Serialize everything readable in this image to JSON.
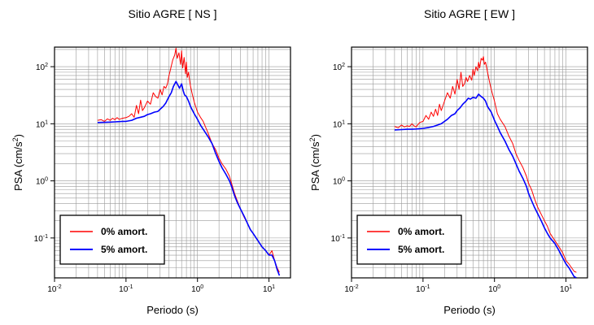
{
  "chart_data": [
    {
      "type": "line",
      "title": "Sitio AGRE [ NS ]",
      "xlabel": "Periodo (s)",
      "ylabel_main": "PSA (cm/s",
      "ylabel_sup": "2",
      "ylabel_close": ")",
      "xscale": "log",
      "yscale": "log",
      "xlim": [
        0.01,
        20
      ],
      "ylim": [
        0.02,
        220
      ],
      "grid": true,
      "legend_position": "bottom-left",
      "x_ticks": [
        {
          "base": "10",
          "exp": "-2"
        },
        {
          "base": "10",
          "exp": "-1"
        },
        {
          "base": "10",
          "exp": "0"
        },
        {
          "base": "10",
          "exp": "1"
        }
      ],
      "y_ticks": [
        {
          "base": "10",
          "exp": "-1"
        },
        {
          "base": "10",
          "exp": "0"
        },
        {
          "base": "10",
          "exp": "1"
        },
        {
          "base": "10",
          "exp": "2"
        }
      ],
      "series": [
        {
          "name": "0% amort.",
          "color": "#ff0000",
          "x": [
            0.04,
            0.045,
            0.05,
            0.055,
            0.06,
            0.065,
            0.07,
            0.075,
            0.08,
            0.09,
            0.1,
            0.11,
            0.12,
            0.13,
            0.14,
            0.15,
            0.16,
            0.17,
            0.18,
            0.2,
            0.22,
            0.24,
            0.26,
            0.28,
            0.3,
            0.32,
            0.34,
            0.36,
            0.38,
            0.4,
            0.42,
            0.45,
            0.48,
            0.5,
            0.52,
            0.55,
            0.58,
            0.6,
            0.62,
            0.65,
            0.68,
            0.7,
            0.72,
            0.75,
            0.78,
            0.8,
            0.85,
            0.9,
            1.0,
            1.1,
            1.2,
            1.4,
            1.6,
            1.8,
            2.0,
            2.2,
            2.5,
            2.8,
            3.0,
            3.3,
            3.6,
            4.0,
            4.5,
            5.0,
            5.5,
            6.0,
            7.0,
            8.0,
            9.0,
            10.0,
            11.0,
            12.0,
            13.0,
            14.0
          ],
          "y": [
            11.5,
            11.8,
            11.0,
            12.2,
            11.5,
            12.5,
            11.8,
            12.8,
            12.0,
            12.5,
            12.8,
            13.5,
            15.0,
            13.0,
            21.0,
            15.0,
            26.0,
            17.0,
            19.0,
            25.0,
            22.0,
            35.0,
            30.0,
            28.0,
            40.0,
            32.0,
            45.0,
            42.0,
            50.0,
            70.0,
            90.0,
            130.0,
            160.0,
            210.0,
            140.0,
            175.0,
            110.0,
            190.0,
            95.0,
            145.0,
            75.0,
            120.0,
            65.0,
            80.0,
            55.0,
            45.0,
            32.0,
            24.0,
            16.0,
            13.0,
            11.0,
            7.0,
            4.5,
            3.5,
            2.5,
            2.0,
            1.6,
            1.2,
            0.9,
            0.6,
            0.45,
            0.32,
            0.23,
            0.18,
            0.14,
            0.12,
            0.09,
            0.07,
            0.06,
            0.05,
            0.06,
            0.04,
            0.03,
            0.025
          ]
        },
        {
          "name": "5% amort.",
          "color": "#0000ff",
          "x": [
            0.04,
            0.05,
            0.06,
            0.07,
            0.08,
            0.09,
            0.1,
            0.12,
            0.14,
            0.16,
            0.18,
            0.2,
            0.22,
            0.25,
            0.28,
            0.3,
            0.33,
            0.36,
            0.4,
            0.43,
            0.46,
            0.5,
            0.53,
            0.56,
            0.6,
            0.63,
            0.66,
            0.7,
            0.75,
            0.8,
            0.9,
            1.0,
            1.1,
            1.2,
            1.4,
            1.6,
            1.8,
            2.0,
            2.2,
            2.5,
            2.8,
            3.0,
            3.3,
            3.6,
            4.0,
            4.5,
            5.0,
            5.5,
            6.0,
            7.0,
            8.0,
            9.0,
            10.0,
            11.0,
            12.0,
            13.0,
            14.0
          ],
          "y": [
            10.5,
            10.6,
            10.7,
            10.8,
            10.9,
            11.0,
            11.0,
            11.5,
            12.5,
            13.0,
            13.5,
            14.5,
            15.0,
            16.0,
            16.5,
            18.0,
            20.0,
            23.0,
            30.0,
            35.0,
            45.0,
            55.0,
            48.0,
            42.0,
            50.0,
            38.0,
            32.0,
            30.0,
            25.0,
            20.0,
            15.0,
            12.0,
            9.5,
            8.0,
            6.0,
            4.5,
            3.0,
            2.2,
            1.7,
            1.3,
            1.0,
            0.8,
            0.55,
            0.42,
            0.32,
            0.24,
            0.18,
            0.14,
            0.12,
            0.09,
            0.07,
            0.06,
            0.05,
            0.05,
            0.04,
            0.028,
            0.022
          ]
        }
      ]
    },
    {
      "type": "line",
      "title": "Sitio AGRE [ EW ]",
      "xlabel": "Periodo (s)",
      "ylabel_main": "PSA (cm/s",
      "ylabel_sup": "2",
      "ylabel_close": ")",
      "xscale": "log",
      "yscale": "log",
      "xlim": [
        0.01,
        20
      ],
      "ylim": [
        0.02,
        220
      ],
      "grid": true,
      "legend_position": "bottom-left",
      "x_ticks": [
        {
          "base": "10",
          "exp": "-2"
        },
        {
          "base": "10",
          "exp": "-1"
        },
        {
          "base": "10",
          "exp": "0"
        },
        {
          "base": "10",
          "exp": "1"
        }
      ],
      "y_ticks": [
        {
          "base": "10",
          "exp": "-1"
        },
        {
          "base": "10",
          "exp": "0"
        },
        {
          "base": "10",
          "exp": "1"
        },
        {
          "base": "10",
          "exp": "2"
        }
      ],
      "series": [
        {
          "name": "0% amort.",
          "color": "#ff0000",
          "x": [
            0.04,
            0.045,
            0.05,
            0.055,
            0.06,
            0.065,
            0.07,
            0.075,
            0.08,
            0.09,
            0.1,
            0.11,
            0.12,
            0.13,
            0.14,
            0.15,
            0.16,
            0.17,
            0.18,
            0.2,
            0.22,
            0.24,
            0.26,
            0.28,
            0.3,
            0.32,
            0.34,
            0.36,
            0.38,
            0.4,
            0.42,
            0.45,
            0.48,
            0.5,
            0.52,
            0.55,
            0.58,
            0.6,
            0.62,
            0.65,
            0.68,
            0.7,
            0.72,
            0.75,
            0.8,
            0.85,
            0.9,
            1.0,
            1.1,
            1.2,
            1.4,
            1.6,
            1.8,
            2.0,
            2.2,
            2.5,
            2.8,
            3.0,
            3.3,
            3.6,
            4.0,
            4.5,
            5.0,
            5.5,
            6.0,
            7.0,
            8.0,
            9.0,
            10.0,
            11.0,
            12.0,
            13.0,
            14.0
          ],
          "y": [
            9.0,
            8.5,
            9.5,
            8.8,
            9.2,
            9.0,
            10.0,
            9.2,
            8.8,
            10.5,
            11.0,
            14.0,
            12.0,
            16.0,
            13.5,
            18.0,
            14.0,
            22.0,
            17.0,
            25.0,
            35.0,
            28.0,
            45.0,
            33.0,
            60.0,
            40.0,
            80.0,
            45.0,
            50.0,
            65.0,
            55.0,
            70.0,
            58.0,
            90.0,
            70.0,
            100.0,
            85.0,
            120.0,
            95.0,
            140.0,
            130.0,
            150.0,
            110.0,
            120.0,
            80.0,
            55.0,
            40.0,
            25.0,
            15.0,
            12.0,
            9.0,
            6.0,
            4.5,
            3.0,
            2.3,
            1.7,
            1.2,
            0.9,
            0.7,
            0.5,
            0.35,
            0.26,
            0.2,
            0.16,
            0.12,
            0.09,
            0.07,
            0.055,
            0.04,
            0.035,
            0.03,
            0.026,
            0.025
          ]
        },
        {
          "name": "5% amort.",
          "color": "#0000ff",
          "x": [
            0.04,
            0.05,
            0.06,
            0.07,
            0.08,
            0.09,
            0.1,
            0.12,
            0.14,
            0.16,
            0.18,
            0.2,
            0.22,
            0.25,
            0.28,
            0.3,
            0.33,
            0.36,
            0.4,
            0.43,
            0.46,
            0.5,
            0.55,
            0.6,
            0.65,
            0.7,
            0.75,
            0.8,
            0.9,
            1.0,
            1.1,
            1.2,
            1.4,
            1.6,
            1.8,
            2.0,
            2.2,
            2.5,
            2.8,
            3.0,
            3.3,
            3.6,
            4.0,
            4.5,
            5.0,
            5.5,
            6.0,
            7.0,
            8.0,
            9.0,
            10.0,
            11.0,
            12.0,
            13.0,
            14.0
          ],
          "y": [
            7.8,
            7.9,
            8.0,
            8.0,
            8.1,
            8.2,
            8.3,
            8.6,
            9.0,
            9.5,
            10.0,
            11.0,
            12.0,
            14.0,
            15.0,
            17.0,
            19.0,
            22.0,
            25.0,
            28.0,
            27.0,
            29.0,
            28.0,
            33.0,
            30.0,
            28.0,
            25.0,
            20.0,
            16.0,
            11.5,
            9.0,
            7.0,
            5.0,
            3.5,
            2.7,
            2.0,
            1.5,
            1.1,
            0.8,
            0.6,
            0.45,
            0.35,
            0.27,
            0.2,
            0.15,
            0.12,
            0.1,
            0.08,
            0.06,
            0.045,
            0.035,
            0.03,
            0.025,
            0.021,
            0.02
          ]
        }
      ]
    }
  ]
}
